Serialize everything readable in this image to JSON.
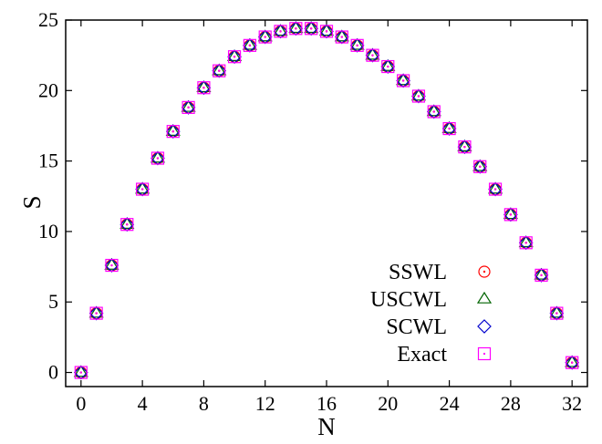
{
  "chart_data": {
    "type": "scatter",
    "xlabel": "N",
    "ylabel": "S",
    "xlim": [
      -1,
      33
    ],
    "ylim": [
      -1,
      25
    ],
    "xticks": [
      0,
      4,
      8,
      12,
      16,
      20,
      24,
      28,
      32
    ],
    "yticks": [
      0,
      5,
      10,
      15,
      20,
      25
    ],
    "x": [
      0,
      1,
      2,
      3,
      4,
      5,
      6,
      7,
      8,
      9,
      10,
      11,
      12,
      13,
      14,
      15,
      16,
      17,
      18,
      19,
      20,
      21,
      22,
      23,
      24,
      25,
      26,
      27,
      28,
      29,
      30,
      31,
      32
    ],
    "series": [
      {
        "name": "SSWL",
        "marker": "circle",
        "color": "#ff0000",
        "values": [
          0.0,
          4.2,
          7.6,
          10.5,
          13.0,
          15.2,
          17.1,
          18.8,
          20.2,
          21.4,
          22.4,
          23.2,
          23.8,
          24.2,
          24.4,
          24.4,
          24.2,
          23.8,
          23.2,
          22.5,
          21.7,
          20.7,
          19.6,
          18.5,
          17.3,
          16.0,
          14.6,
          13.0,
          11.2,
          9.2,
          6.9,
          4.2,
          0.7
        ]
      },
      {
        "name": "USCWL",
        "marker": "triangle",
        "color": "#006400",
        "values": [
          0.0,
          4.2,
          7.6,
          10.5,
          13.0,
          15.2,
          17.1,
          18.8,
          20.2,
          21.4,
          22.4,
          23.2,
          23.8,
          24.2,
          24.4,
          24.4,
          24.2,
          23.8,
          23.2,
          22.5,
          21.7,
          20.7,
          19.6,
          18.5,
          17.3,
          16.0,
          14.6,
          13.0,
          11.2,
          9.2,
          6.9,
          4.2,
          0.7
        ]
      },
      {
        "name": "SCWL",
        "marker": "diamond",
        "color": "#0000cd",
        "values": [
          0.0,
          4.2,
          7.6,
          10.5,
          13.0,
          15.2,
          17.1,
          18.8,
          20.2,
          21.4,
          22.4,
          23.2,
          23.8,
          24.2,
          24.4,
          24.4,
          24.2,
          23.8,
          23.2,
          22.5,
          21.7,
          20.7,
          19.6,
          18.5,
          17.3,
          16.0,
          14.6,
          13.0,
          11.2,
          9.2,
          6.9,
          4.2,
          0.7
        ]
      },
      {
        "name": "Exact",
        "marker": "square",
        "color": "#ff00ff",
        "values": [
          0.0,
          4.2,
          7.6,
          10.5,
          13.0,
          15.2,
          17.1,
          18.8,
          20.2,
          21.4,
          22.4,
          23.2,
          23.8,
          24.2,
          24.4,
          24.4,
          24.2,
          23.8,
          23.2,
          22.5,
          21.7,
          20.7,
          19.6,
          18.5,
          17.3,
          16.0,
          14.6,
          13.0,
          11.2,
          9.2,
          6.9,
          4.2,
          0.7
        ]
      }
    ],
    "legend_position": "bottom-right",
    "grid": false
  }
}
